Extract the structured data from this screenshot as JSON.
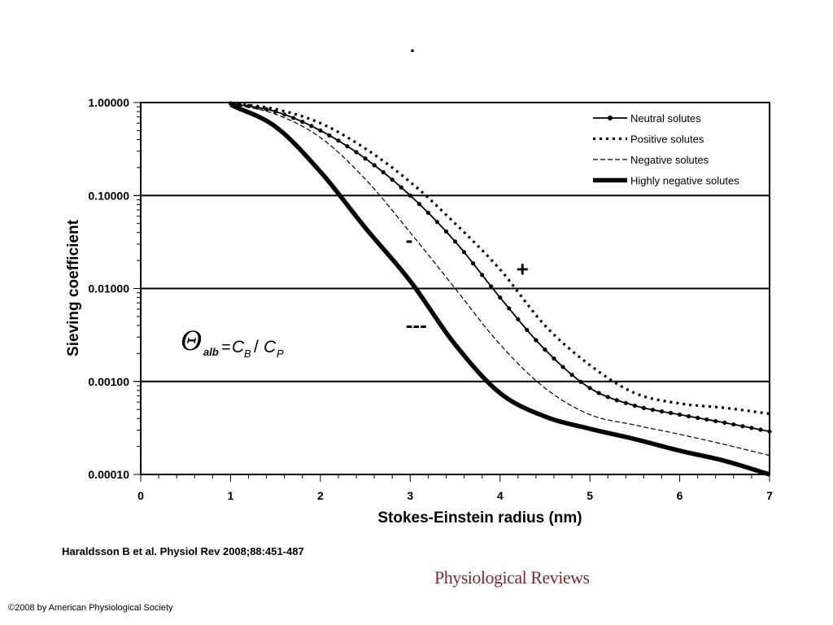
{
  "slide": {
    "top_mark": ".",
    "citation": "Haraldsson B et al. Physiol Rev 2008;88:451-487",
    "journal_logo": "Physiological Reviews",
    "copyright": "©2008 by American Physiological Society"
  },
  "chart_data": {
    "type": "line",
    "title": "",
    "xlabel": "Stokes-Einstein radius (nm)",
    "ylabel": "Sieving coefficient",
    "xlim": [
      0,
      7
    ],
    "ylim": [
      0.0001,
      1.0
    ],
    "y_scale": "log",
    "x_ticks": [
      "0",
      "1",
      "2",
      "3",
      "4",
      "5",
      "6",
      "7"
    ],
    "y_ticks": [
      "1.00000",
      "0.10000",
      "0.01000",
      "0.00100",
      "0.00010"
    ],
    "grid": "horizontal major lines",
    "legend_position": "top-right",
    "series": [
      {
        "name": "Neutral solutes",
        "style": "solid-with-dots",
        "x": [
          1.0,
          1.5,
          2.0,
          2.5,
          3.0,
          3.5,
          4.0,
          4.5,
          5.0,
          5.5,
          6.0,
          6.5,
          7.0
        ],
        "y": [
          0.98,
          0.8,
          0.5,
          0.25,
          0.1,
          0.032,
          0.008,
          0.0022,
          0.00085,
          0.00055,
          0.00044,
          0.00036,
          0.00029
        ]
      },
      {
        "name": "Positive solutes",
        "style": "dotted",
        "x": [
          1.0,
          1.5,
          2.0,
          2.5,
          3.0,
          3.5,
          4.0,
          4.5,
          5.0,
          5.5,
          6.0,
          6.5,
          7.0
        ],
        "y": [
          0.99,
          0.85,
          0.6,
          0.32,
          0.14,
          0.05,
          0.016,
          0.004,
          0.0015,
          0.00075,
          0.00058,
          0.00052,
          0.00045
        ]
      },
      {
        "name": "Negative solutes",
        "style": "dashed",
        "x": [
          1.0,
          1.5,
          2.0,
          2.5,
          3.0,
          3.5,
          4.0,
          4.5,
          5.0,
          5.5,
          6.0,
          6.5,
          7.0
        ],
        "y": [
          0.97,
          0.75,
          0.42,
          0.15,
          0.04,
          0.01,
          0.0025,
          0.00085,
          0.00044,
          0.00034,
          0.00027,
          0.00021,
          0.00016
        ]
      },
      {
        "name": "Highly negative solutes",
        "style": "thick-solid",
        "x": [
          1.0,
          1.5,
          2.0,
          2.5,
          3.0,
          3.5,
          4.0,
          4.5,
          5.0,
          5.5,
          6.0,
          6.5,
          7.0
        ],
        "y": [
          0.95,
          0.55,
          0.18,
          0.045,
          0.012,
          0.0025,
          0.00075,
          0.00042,
          0.00031,
          0.00024,
          0.00018,
          0.00014,
          0.0001
        ]
      }
    ],
    "annotations": [
      {
        "text": "-",
        "x": 2.95,
        "y": 0.028,
        "size": 26
      },
      {
        "text": "+",
        "x": 4.18,
        "y": 0.0135,
        "size": 26
      },
      {
        "text": "---",
        "x": 2.95,
        "y": 0.0034,
        "size": 26
      }
    ],
    "formula": {
      "symbol": "Θ",
      "sub": "alb",
      "eq": "=",
      "c1": "C",
      "c1_sub": "B",
      "slash": "/",
      "c2": "C",
      "c2_sub": "P"
    }
  },
  "colors": {
    "line": "#000000",
    "journal": "#7a2b33",
    "background": "#ffffff"
  }
}
